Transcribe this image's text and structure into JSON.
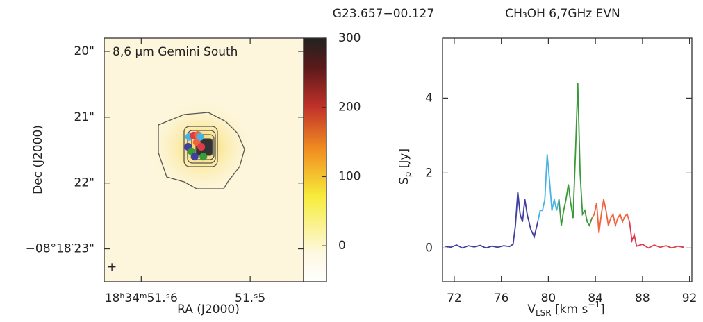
{
  "header": {
    "source": "G23.657−00.127",
    "line": "CH₃OH 6,7GHz EVN"
  },
  "chart_data": [
    {
      "type": "image",
      "title": "8,6 μm Gemini South",
      "xlabel": "RA (J2000)",
      "ylabel": "Dec (J2000)",
      "xlim": [
        51.634,
        51.451
      ],
      "ylim": [
        23.5,
        19.8
      ],
      "xticks": [
        {
          "value": 51.6,
          "label": "18ʰ34ᵐ51.ˢ6"
        },
        {
          "value": 51.5,
          "label": "51.ˢ5"
        }
      ],
      "yticks": [
        {
          "value": 20,
          "label": "20\""
        },
        {
          "value": 21,
          "label": "21\""
        },
        {
          "value": 22,
          "label": "22\""
        },
        {
          "value": 23,
          "label": "−08°18′23\""
        }
      ],
      "colorbar": {
        "clim": [
          -52,
          300
        ],
        "ticks": [
          0,
          100,
          200,
          300
        ]
      },
      "spots": {
        "x": [
          51.556,
          51.552,
          51.548,
          51.557,
          51.554,
          51.549,
          51.545,
          51.551,
          51.543,
          51.546
        ],
        "values": [
          21.3,
          21.28,
          21.27,
          21.45,
          21.52,
          21.38,
          21.45,
          21.6,
          21.6,
          21.3
        ],
        "colors": [
          "#46b3e6",
          "#e03a4a",
          "#f0643c",
          "#3f3f9c",
          "#3a9a3a",
          "#f0643c",
          "#e03a4a",
          "#3f3f9c",
          "#3a9a3a",
          "#46b3e6"
        ]
      }
    },
    {
      "type": "line",
      "xlabel": [
        "V",
        "LSR",
        " [km s",
        "−1",
        "]"
      ],
      "ylabel": [
        "S",
        "p",
        " [Jy]"
      ],
      "xlim": [
        71,
        92.2
      ],
      "ylim": [
        -0.9,
        5.6
      ],
      "xticks": [
        72,
        76,
        80,
        84,
        88,
        92
      ],
      "yticks": [
        0,
        2,
        4
      ],
      "series": [
        {
          "color": "#3f3f9c",
          "x": [
            71.2,
            71.7,
            72.2,
            72.7,
            73.2,
            73.7,
            74.2,
            74.7,
            75.2,
            75.7,
            76.2,
            76.7,
            77.0,
            77.2,
            77.4,
            77.6,
            77.8,
            78.0,
            78.2,
            78.5,
            78.8,
            79.1
          ],
          "values": [
            0.05,
            0.02,
            0.08,
            0.0,
            0.06,
            0.03,
            0.07,
            0.0,
            0.05,
            0.02,
            0.06,
            0.04,
            0.1,
            0.6,
            1.5,
            0.9,
            0.7,
            1.3,
            0.9,
            0.5,
            0.3,
            0.7
          ]
        },
        {
          "color": "#46b3e6",
          "x": [
            79.1,
            79.3,
            79.5,
            79.7,
            79.9,
            80.1,
            80.3,
            80.5,
            80.7,
            80.9
          ],
          "values": [
            0.7,
            1.0,
            1.0,
            1.3,
            2.5,
            1.8,
            1.0,
            1.3,
            1.0,
            1.3
          ]
        },
        {
          "color": "#3a9a3a",
          "x": [
            80.9,
            81.1,
            81.3,
            81.5,
            81.7,
            81.9,
            82.1,
            82.3,
            82.5,
            82.7,
            82.9,
            83.1,
            83.3,
            83.5,
            83.7
          ],
          "values": [
            1.3,
            0.6,
            1.0,
            1.3,
            1.7,
            1.2,
            0.8,
            2.5,
            4.4,
            2.0,
            0.9,
            1.0,
            0.7,
            0.6,
            0.8
          ]
        },
        {
          "color": "#f0643c",
          "x": [
            83.7,
            83.9,
            84.1,
            84.3,
            84.5,
            84.7,
            84.9,
            85.1,
            85.3,
            85.5,
            85.7,
            85.9,
            86.1,
            86.3,
            86.5,
            86.7,
            86.9
          ],
          "values": [
            0.8,
            0.9,
            1.2,
            0.4,
            0.9,
            1.3,
            1.0,
            0.6,
            0.8,
            0.9,
            0.6,
            0.8,
            0.9,
            0.7,
            0.85,
            0.9,
            0.7
          ]
        },
        {
          "color": "#e03a4a",
          "x": [
            86.9,
            87.1,
            87.3,
            87.5,
            88.0,
            88.5,
            89.0,
            89.5,
            90.0,
            90.5,
            91.0,
            91.5
          ],
          "values": [
            0.7,
            0.2,
            0.35,
            0.05,
            0.1,
            0.0,
            0.08,
            0.02,
            0.06,
            0.0,
            0.05,
            0.02
          ]
        }
      ]
    }
  ]
}
